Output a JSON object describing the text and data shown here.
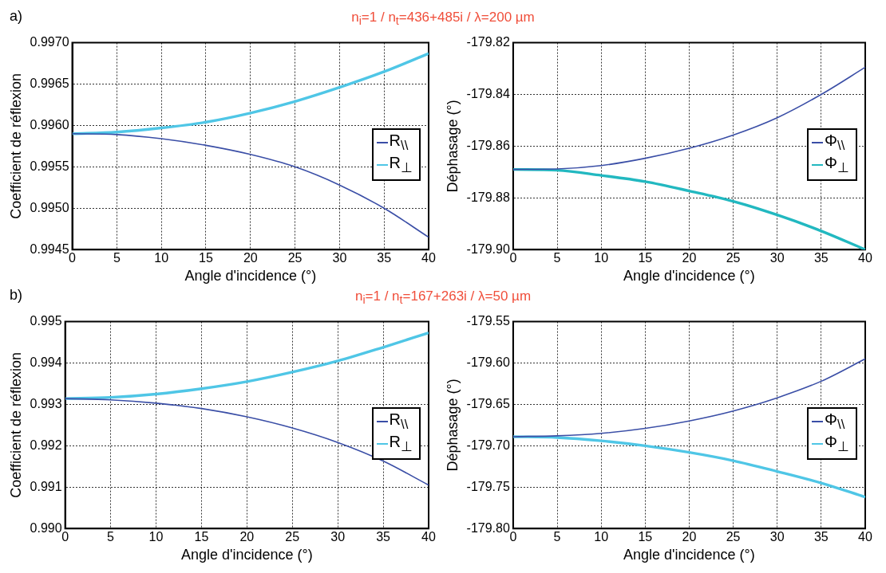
{
  "chart_data": [
    {
      "type": "line",
      "title": "n$_{i}$=1 / n$_{t}$=436+485i / λ=200 µm",
      "annotations": [
        "a)"
      ],
      "xlabel": "Angle d'incidence (°)",
      "ylabel": "Coefficient de réflexion",
      "x": [
        0,
        5,
        10,
        15,
        20,
        25,
        30,
        35,
        40
      ],
      "xlim": [
        0,
        40
      ],
      "xticks": [
        0,
        5,
        10,
        15,
        20,
        25,
        30,
        35,
        40
      ],
      "ylim": [
        0.9945,
        0.997
      ],
      "yticks": [
        {
          "value": 0.9945,
          "label": "0.9945"
        },
        {
          "value": 0.995,
          "label": "0.9950"
        },
        {
          "value": 0.9955,
          "label": "0.9955"
        },
        {
          "value": 0.996,
          "label": "0.9960"
        },
        {
          "value": 0.9965,
          "label": "0.9965"
        },
        {
          "value": 0.997,
          "label": "0.9970"
        }
      ],
      "grid": true,
      "legend": "right",
      "marker": "none",
      "line_style": "solid",
      "series": [
        {
          "name": "R$_{\\\\}$",
          "color": "#3a4ea6",
          "values": [
            0.9959,
            0.99589,
            0.99584,
            0.99576,
            0.99565,
            0.9955,
            0.99528,
            0.995,
            0.99465
          ]
        },
        {
          "name": "R$_{⊥}$",
          "color": "#4fc6e6",
          "values": [
            0.9959,
            0.99592,
            0.99597,
            0.99604,
            0.99615,
            0.99629,
            0.99646,
            0.99665,
            0.99687
          ]
        }
      ]
    },
    {
      "type": "line",
      "xlabel": "Angle d'incidence (°)",
      "ylabel": "Déphasage (°)",
      "x": [
        0,
        5,
        10,
        15,
        20,
        25,
        30,
        35,
        40
      ],
      "xlim": [
        0,
        40
      ],
      "xticks": [
        0,
        5,
        10,
        15,
        20,
        25,
        30,
        35,
        40
      ],
      "ylim": [
        -179.9,
        -179.82
      ],
      "yticks": [
        {
          "value": -179.9,
          "label": "-179.90"
        },
        -179.88,
        -179.86,
        -179.84,
        -179.82
      ],
      "grid": true,
      "legend": "right",
      "marker": "none",
      "line_style": "solid",
      "series": [
        {
          "name": "Φ$_{\\\\}$",
          "color": "#3a4ea6",
          "values": [
            -179.869,
            -179.8688,
            -179.8675,
            -179.8647,
            -179.8608,
            -179.8557,
            -179.849,
            -179.84,
            -179.8295
          ]
        },
        {
          "name": "Φ$_{⊥}$",
          "color": "#22b8c0",
          "values": [
            -179.869,
            -179.8693,
            -179.8713,
            -179.8737,
            -179.8773,
            -179.8813,
            -179.8866,
            -179.8928,
            -179.9
          ]
        }
      ]
    },
    {
      "type": "line",
      "title": "n$_{i}$=1 / n$_{t}$=167+263i / λ=50 µm",
      "annotations": [
        "b)"
      ],
      "xlabel": "Angle d'incidence (°)",
      "ylabel": "Coefficient de réflexion",
      "x": [
        0,
        5,
        10,
        15,
        20,
        25,
        30,
        35,
        40
      ],
      "xlim": [
        0,
        40
      ],
      "xticks": [
        0,
        5,
        10,
        15,
        20,
        25,
        30,
        35,
        40
      ],
      "ylim": [
        0.99,
        0.995
      ],
      "yticks": [
        {
          "value": 0.99,
          "label": "0.990"
        },
        {
          "value": 0.991,
          "label": "0.991"
        },
        {
          "value": 0.992,
          "label": "0.992"
        },
        {
          "value": 0.993,
          "label": "0.993"
        },
        {
          "value": 0.994,
          "label": "0.994"
        },
        {
          "value": 0.995,
          "label": "0.995"
        }
      ],
      "grid": true,
      "legend": "right",
      "marker": "none",
      "line_style": "solid",
      "series": [
        {
          "name": "R$_{\\\\}$",
          "color": "#3a4ea6",
          "values": [
            0.99314,
            0.99311,
            0.99303,
            0.9929,
            0.9927,
            0.99243,
            0.99208,
            0.99163,
            0.99105
          ]
        },
        {
          "name": "R$_{⊥}$",
          "color": "#4fc6e6",
          "values": [
            0.99314,
            0.99317,
            0.99325,
            0.99338,
            0.99355,
            0.99378,
            0.99405,
            0.99438,
            0.99473
          ]
        }
      ]
    },
    {
      "type": "line",
      "xlabel": "Angle d'incidence (°)",
      "ylabel": "Déphasage (°)",
      "x": [
        0,
        5,
        10,
        15,
        20,
        25,
        30,
        35,
        40
      ],
      "xlim": [
        0,
        40
      ],
      "xticks": [
        0,
        5,
        10,
        15,
        20,
        25,
        30,
        35,
        40
      ],
      "ylim": [
        -179.8,
        -179.55
      ],
      "yticks": [
        {
          "value": -179.8,
          "label": "-179.80"
        },
        -179.75,
        {
          "value": -179.7,
          "label": "-179.70"
        },
        -179.65,
        {
          "value": -179.6,
          "label": "-179.60"
        },
        -179.55
      ],
      "grid": true,
      "legend": "right",
      "marker": "none",
      "line_style": "solid",
      "series": [
        {
          "name": "Φ$_{\\\\}$",
          "color": "#3a4ea6",
          "values": [
            -179.689,
            -179.688,
            -179.685,
            -179.679,
            -179.67,
            -179.658,
            -179.642,
            -179.622,
            -179.595
          ]
        },
        {
          "name": "Φ$_{⊥}$",
          "color": "#4fc6e6",
          "values": [
            -179.689,
            -179.69,
            -179.694,
            -179.7,
            -179.708,
            -179.718,
            -179.731,
            -179.745,
            -179.762
          ]
        }
      ]
    }
  ]
}
